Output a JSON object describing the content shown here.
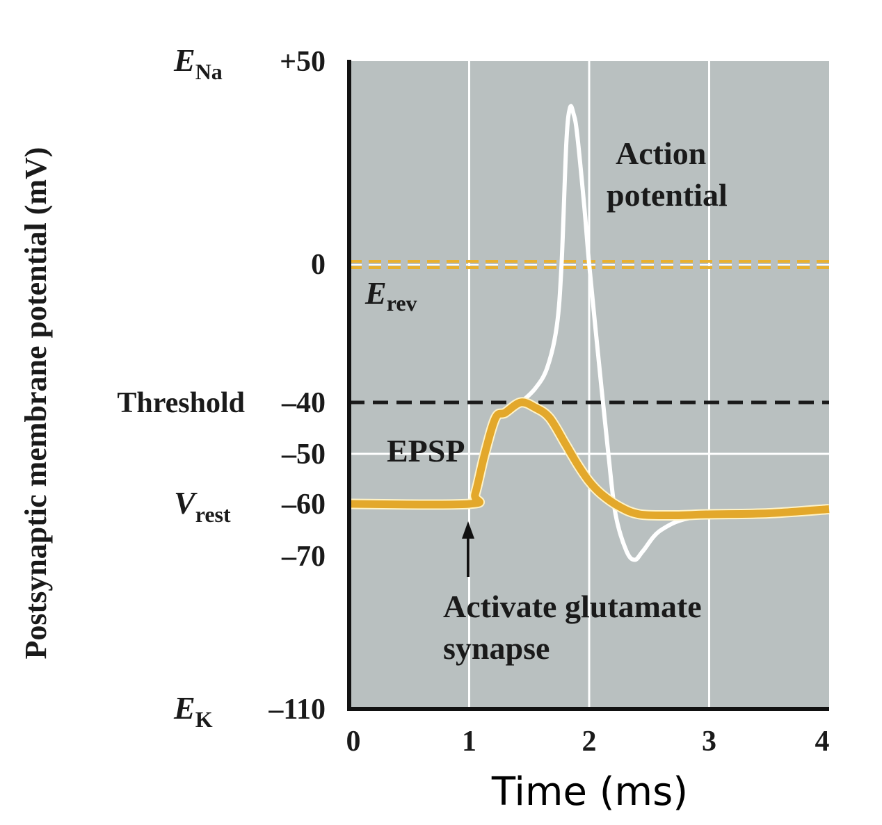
{
  "chart_data": {
    "type": "line",
    "xlabel": "Time (ms)",
    "ylabel": "Postsynaptic membrane potential (mV)",
    "xlim": [
      0,
      4
    ],
    "ylim": [
      -110,
      50
    ],
    "x_ticks": [
      "0",
      "1",
      "2",
      "3",
      "4"
    ],
    "y_ticks": [
      {
        "value": 50,
        "label": "+50",
        "symbol": "E",
        "subscript": "Na"
      },
      {
        "value": 0,
        "label": "0"
      },
      {
        "value": -40,
        "label": "–40",
        "name": "Threshold"
      },
      {
        "value": -50,
        "label": "–50"
      },
      {
        "value": -60,
        "label": "–60",
        "symbol": "V",
        "subscript": "rest"
      },
      {
        "value": -70,
        "label": "–70"
      },
      {
        "value": -110,
        "label": "–110",
        "symbol": "E",
        "subscript": "K"
      }
    ],
    "grid": true,
    "reference_lines": [
      {
        "value": -40,
        "style": "dashed",
        "color": "#1a1a1a"
      },
      {
        "value": 0,
        "style": "dashed",
        "color": "#e8b030",
        "label_symbol": "E",
        "label_subscript": "rev"
      }
    ],
    "series": [
      {
        "name": "EPSP",
        "color": "#e3a82b",
        "x": [
          0,
          1.0,
          1.05,
          1.13,
          1.22,
          1.3,
          1.43,
          1.55,
          1.67,
          1.8,
          1.9,
          2.0,
          2.1,
          2.25,
          2.42,
          2.7,
          3.0,
          3.5,
          4.0
        ],
        "y": [
          -60,
          -60,
          -58,
          -50,
          -43,
          -42,
          -40,
          -41,
          -43,
          -48,
          -52,
          -55.5,
          -58,
          -60.5,
          -62,
          -62.2,
          -62,
          -61.8,
          -61
        ]
      },
      {
        "name": "Action potential",
        "color": "#ffffff",
        "x": [
          1.43,
          1.55,
          1.65,
          1.73,
          1.77,
          1.81,
          1.84,
          1.87,
          1.9,
          1.96,
          2.0,
          2.08,
          2.16,
          2.22,
          2.31,
          2.38,
          2.45,
          2.6,
          2.89,
          3.5,
          4.0
        ],
        "y": [
          -40,
          -36,
          -30,
          -18,
          0,
          30,
          38.5,
          37,
          32,
          14,
          0,
          -28,
          -50,
          -62,
          -69,
          -71,
          -69,
          -65,
          -62.5,
          -62,
          -61
        ]
      }
    ],
    "annotations": {
      "action_potential": [
        "Action",
        "potential"
      ],
      "epsp": "EPSP",
      "stimulus": [
        "Activate glutamate",
        "synapse"
      ],
      "stimulus_time": 1
    },
    "colors": {
      "plot_background": "#b9c0c0",
      "grid": "#ffffff",
      "epsp": "#e3a82b"
    }
  }
}
